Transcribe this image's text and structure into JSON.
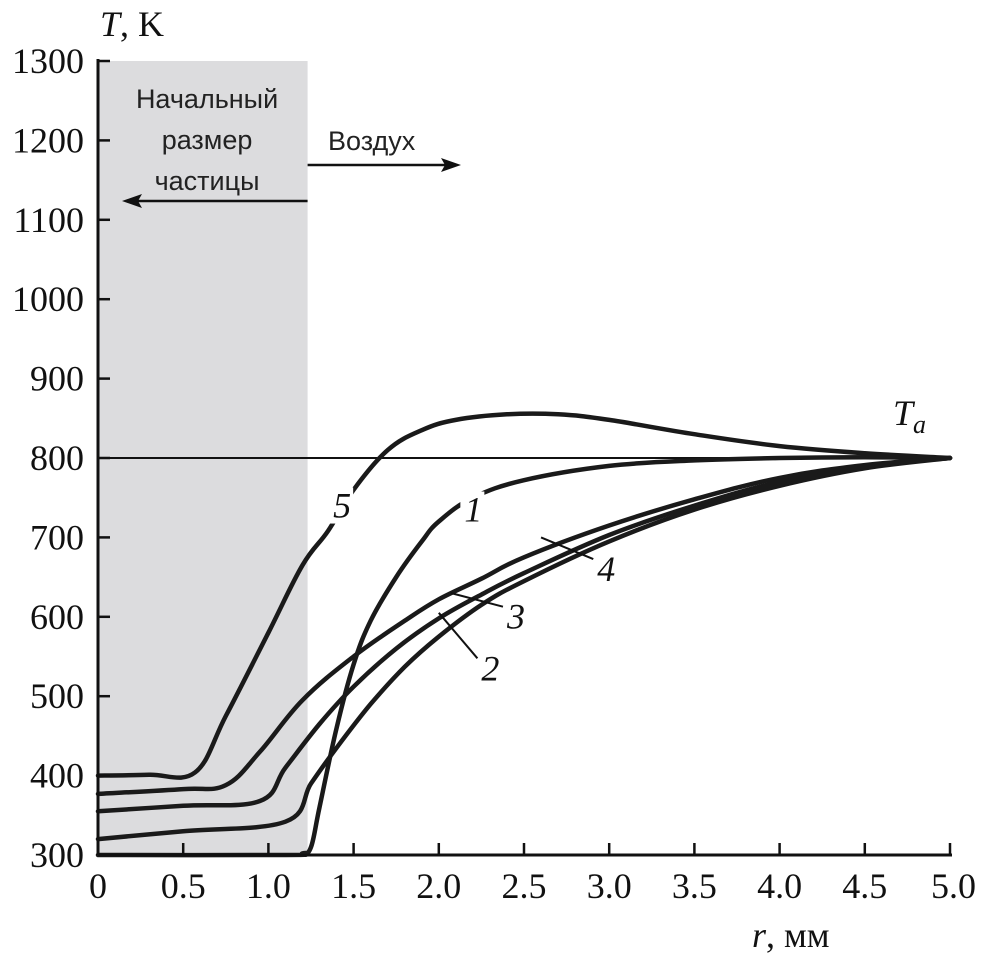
{
  "chart_data": {
    "type": "line",
    "ylabel": {
      "symbol": "T",
      "unit": ", K"
    },
    "xlabel": {
      "symbol": "r",
      "unit": ", мм"
    },
    "xlim": [
      0,
      5
    ],
    "ylim": [
      300,
      1300
    ],
    "x_ticks": [
      0,
      0.5,
      1.0,
      1.5,
      2.0,
      2.5,
      3.0,
      3.5,
      4.0,
      4.5,
      5.0
    ],
    "x_tick_labels": [
      "0",
      "0.5",
      "1.0",
      "1.5",
      "2.0",
      "2.5",
      "3.0",
      "3.5",
      "4.0",
      "4.5",
      "5.0"
    ],
    "y_ticks": [
      300,
      400,
      500,
      600,
      700,
      800,
      900,
      1000,
      1100,
      1200,
      1300
    ],
    "y_tick_labels": [
      "300",
      "400",
      "500",
      "600",
      "700",
      "800",
      "900",
      "1000",
      "1100",
      "1200",
      "1300"
    ],
    "grid": false,
    "shaded_region": {
      "x_range": [
        0,
        1.23
      ],
      "color": "#dcdcde"
    },
    "annotations": {
      "particle_label_lines": [
        "Начальный",
        "размер",
        "частицы"
      ],
      "air_label": "Воздух"
    },
    "reference_line": {
      "y": 800,
      "label_symbol": "T",
      "label_subscript": "a"
    },
    "series": [
      {
        "name": "1",
        "label_at": [
          2.15,
          720
        ],
        "leader_to": null,
        "points": [
          [
            0,
            300
          ],
          [
            1.1,
            300
          ],
          [
            1.2,
            302
          ],
          [
            1.25,
            310
          ],
          [
            1.3,
            360
          ],
          [
            1.4,
            460
          ],
          [
            1.5,
            540
          ],
          [
            1.6,
            595
          ],
          [
            1.75,
            650
          ],
          [
            1.9,
            695
          ],
          [
            2.0,
            720
          ],
          [
            2.2,
            750
          ],
          [
            2.5,
            772
          ],
          [
            3.0,
            790
          ],
          [
            3.5,
            797
          ],
          [
            4.0,
            800
          ],
          [
            4.5,
            801
          ],
          [
            5.0,
            800
          ]
        ]
      },
      {
        "name": "2",
        "label_at": [
          2.25,
          520
        ],
        "leader_to": [
          2.0,
          605
        ],
        "points": [
          [
            0,
            320
          ],
          [
            0.5,
            330
          ],
          [
            1.1,
            342
          ],
          [
            1.25,
            390
          ],
          [
            1.4,
            435
          ],
          [
            1.6,
            490
          ],
          [
            1.8,
            537
          ],
          [
            2.0,
            575
          ],
          [
            2.25,
            615
          ],
          [
            2.5,
            645
          ],
          [
            3.0,
            695
          ],
          [
            3.5,
            735
          ],
          [
            4.0,
            765
          ],
          [
            4.5,
            787
          ],
          [
            5.0,
            800
          ]
        ]
      },
      {
        "name": "3",
        "label_at": [
          2.4,
          585
        ],
        "leader_to": [
          2.07,
          630
        ],
        "points": [
          [
            0,
            355
          ],
          [
            0.5,
            362
          ],
          [
            0.95,
            368
          ],
          [
            1.1,
            410
          ],
          [
            1.3,
            465
          ],
          [
            1.5,
            512
          ],
          [
            1.75,
            560
          ],
          [
            2.0,
            598
          ],
          [
            2.25,
            628
          ],
          [
            2.5,
            655
          ],
          [
            3.0,
            703
          ],
          [
            3.5,
            740
          ],
          [
            4.0,
            770
          ],
          [
            4.5,
            789
          ],
          [
            5.0,
            800
          ]
        ]
      },
      {
        "name": "4",
        "label_at": [
          2.93,
          645
        ],
        "leader_to": [
          2.6,
          700
        ],
        "points": [
          [
            0,
            377
          ],
          [
            0.5,
            383
          ],
          [
            0.75,
            388
          ],
          [
            0.95,
            430
          ],
          [
            1.2,
            495
          ],
          [
            1.5,
            550
          ],
          [
            1.8,
            595
          ],
          [
            2.0,
            622
          ],
          [
            2.25,
            648
          ],
          [
            2.5,
            675
          ],
          [
            3.0,
            715
          ],
          [
            3.5,
            748
          ],
          [
            4.0,
            775
          ],
          [
            4.5,
            791
          ],
          [
            5.0,
            800
          ]
        ]
      },
      {
        "name": "5",
        "label_at": [
          1.38,
          725
        ],
        "leader_to": null,
        "points": [
          [
            0,
            400
          ],
          [
            0.3,
            401
          ],
          [
            0.57,
            404
          ],
          [
            0.75,
            475
          ],
          [
            1.0,
            580
          ],
          [
            1.2,
            665
          ],
          [
            1.35,
            708
          ],
          [
            1.5,
            760
          ],
          [
            1.7,
            810
          ],
          [
            1.9,
            835
          ],
          [
            2.1,
            848
          ],
          [
            2.4,
            855
          ],
          [
            2.7,
            855
          ],
          [
            3.0,
            848
          ],
          [
            3.5,
            830
          ],
          [
            4.0,
            815
          ],
          [
            4.5,
            806
          ],
          [
            5.0,
            800
          ]
        ]
      }
    ]
  }
}
